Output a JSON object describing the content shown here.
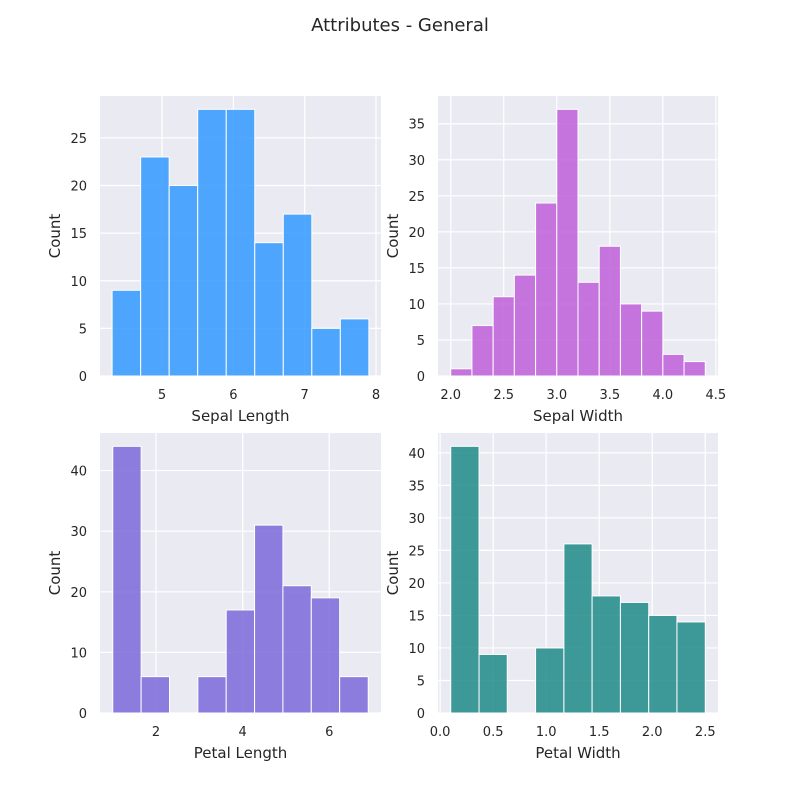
{
  "figure": {
    "title": "Attributes - General"
  },
  "chart_data": [
    {
      "type": "bar",
      "xlabel": "Sepal Length",
      "ylabel": "Count",
      "color": "#3399ff",
      "bin_edges": [
        4.3,
        4.7,
        5.1,
        5.5,
        5.9,
        6.3,
        6.7,
        7.1,
        7.5,
        7.9
      ],
      "values": [
        9,
        23,
        20,
        28,
        28,
        14,
        17,
        5,
        6
      ],
      "xlim": [
        4.13,
        8.07
      ],
      "ylim": [
        0,
        29.4
      ],
      "xticks": [
        5,
        6,
        7,
        8
      ],
      "xtick_labels": [
        "5",
        "6",
        "7",
        "8"
      ],
      "yticks": [
        0,
        5,
        10,
        15,
        20,
        25
      ],
      "ytick_labels": [
        "0",
        "5",
        "10",
        "15",
        "20",
        "25"
      ]
    },
    {
      "type": "bar",
      "xlabel": "Sepal Width",
      "ylabel": "Count",
      "color": "#bf5fd9",
      "bin_edges": [
        2.0,
        2.2,
        2.4,
        2.6,
        2.8,
        3.0,
        3.2,
        3.4,
        3.6,
        3.8,
        4.0,
        4.2,
        4.4
      ],
      "values": [
        1,
        7,
        11,
        14,
        24,
        37,
        13,
        18,
        10,
        9,
        3,
        2
      ],
      "xlim": [
        1.88,
        4.52
      ],
      "ylim": [
        0,
        38.85
      ],
      "xticks": [
        2.0,
        2.5,
        3.0,
        3.5,
        4.0,
        4.5
      ],
      "xtick_labels": [
        "2.0",
        "2.5",
        "3.0",
        "3.5",
        "4.0",
        "4.5"
      ],
      "yticks": [
        0,
        5,
        10,
        15,
        20,
        25,
        30,
        35
      ],
      "ytick_labels": [
        "0",
        "5",
        "10",
        "15",
        "20",
        "25",
        "30",
        "35"
      ]
    },
    {
      "type": "bar",
      "xlabel": "Petal Length",
      "ylabel": "Count",
      "color": "#7b68d9",
      "bin_edges": [
        1.0,
        1.655,
        2.31,
        2.965,
        3.62,
        4.275,
        4.93,
        5.585,
        6.24,
        6.9
      ],
      "values": [
        44,
        6,
        0,
        6,
        17,
        31,
        21,
        19,
        6
      ],
      "xlim": [
        0.705,
        7.195
      ],
      "ylim": [
        0,
        46.2
      ],
      "xticks": [
        2,
        4,
        6
      ],
      "xtick_labels": [
        "2",
        "4",
        "6"
      ],
      "yticks": [
        0,
        10,
        20,
        30,
        40
      ],
      "ytick_labels": [
        "0",
        "10",
        "20",
        "30",
        "40"
      ]
    },
    {
      "type": "bar",
      "xlabel": "Petal Width",
      "ylabel": "Count",
      "color": "#1f8a88",
      "bin_edges": [
        0.1,
        0.367,
        0.633,
        0.9,
        1.167,
        1.433,
        1.7,
        1.967,
        2.233,
        2.5
      ],
      "values": [
        41,
        9,
        0,
        10,
        26,
        18,
        17,
        15,
        14
      ],
      "xlim": [
        -0.02,
        2.62
      ],
      "ylim": [
        0,
        43.05
      ],
      "xticks": [
        0.0,
        0.5,
        1.0,
        1.5,
        2.0,
        2.5
      ],
      "xtick_labels": [
        "0.0",
        "0.5",
        "1.0",
        "1.5",
        "2.0",
        "2.5"
      ],
      "yticks": [
        0,
        5,
        10,
        15,
        20,
        25,
        30,
        35,
        40
      ],
      "ytick_labels": [
        "0",
        "5",
        "10",
        "15",
        "20",
        "25",
        "30",
        "35",
        "40"
      ]
    }
  ]
}
